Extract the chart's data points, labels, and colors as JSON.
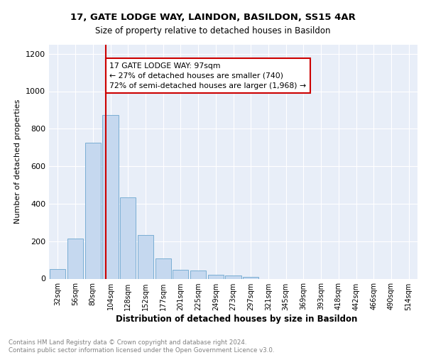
{
  "title1": "17, GATE LODGE WAY, LAINDON, BASILDON, SS15 4AR",
  "title2": "Size of property relative to detached houses in Basildon",
  "xlabel": "Distribution of detached houses by size in Basildon",
  "ylabel": "Number of detached properties",
  "bar_labels": [
    "32sqm",
    "56sqm",
    "80sqm",
    "104sqm",
    "128sqm",
    "152sqm",
    "177sqm",
    "201sqm",
    "225sqm",
    "249sqm",
    "273sqm",
    "297sqm",
    "321sqm",
    "345sqm",
    "369sqm",
    "393sqm",
    "418sqm",
    "442sqm",
    "466sqm",
    "490sqm",
    "514sqm"
  ],
  "bar_values": [
    52,
    215,
    725,
    875,
    435,
    232,
    107,
    47,
    42,
    22,
    18,
    10,
    0,
    0,
    0,
    0,
    0,
    0,
    0,
    0,
    0
  ],
  "bar_color": "#c5d8ef",
  "bar_edge_color": "#7aaed4",
  "vline_color": "#cc0000",
  "vline_x": 2.72,
  "annotation_text": "17 GATE LODGE WAY: 97sqm\n← 27% of detached houses are smaller (740)\n72% of semi-detached houses are larger (1,968) →",
  "annotation_box_color": "#ffffff",
  "annotation_box_edge": "#cc0000",
  "ylim": [
    0,
    1250
  ],
  "yticks": [
    0,
    200,
    400,
    600,
    800,
    1000,
    1200
  ],
  "footer_text": "Contains HM Land Registry data © Crown copyright and database right 2024.\nContains public sector information licensed under the Open Government Licence v3.0.",
  "plot_bg_color": "#e8eef8"
}
